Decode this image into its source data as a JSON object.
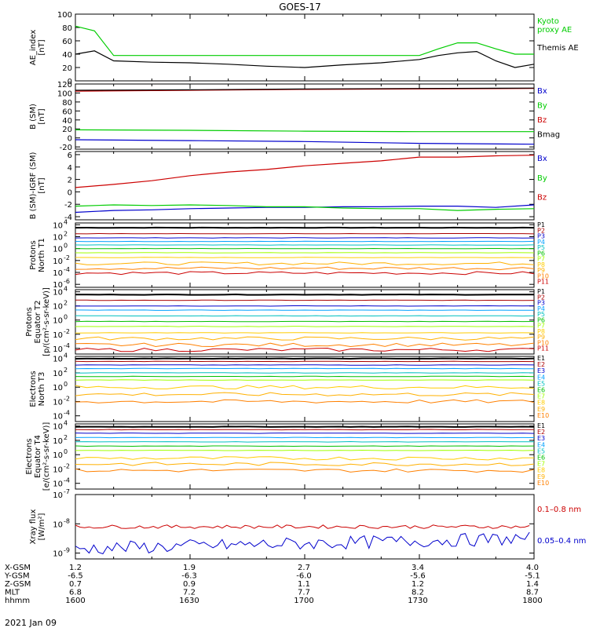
{
  "title": "GOES-17",
  "date_label": "2021 Jan 09",
  "colors": {
    "black": "#000000",
    "red": "#cc0000",
    "green": "#00cc00",
    "blue": "#0000cc",
    "p": [
      "#000000",
      "#aa0000",
      "#0000cc",
      "#00a0ff",
      "#00c0c0",
      "#00c000",
      "#a0ff00",
      "#ffcc00",
      "#ffb000",
      "#ff8000",
      "#cc0000"
    ]
  },
  "orbit_table": {
    "rows": [
      {
        "label": "X-GSM",
        "values": [
          "1.2",
          "1.9",
          "2.7",
          "3.4",
          "4.0"
        ]
      },
      {
        "label": "Y-GSM",
        "values": [
          "-6.5",
          "-6.3",
          "-6.0",
          "-5.6",
          "-5.1"
        ]
      },
      {
        "label": "Z-GSM",
        "values": [
          "0.7",
          "0.9",
          "1.1",
          "1.2",
          "1.4"
        ]
      },
      {
        "label": "MLT",
        "values": [
          "6.8",
          "7.2",
          "7.7",
          "8.2",
          "8.7"
        ]
      },
      {
        "label": "hhmm",
        "values": [
          "1600",
          "1630",
          "1700",
          "1730",
          "1800"
        ]
      }
    ]
  },
  "chart_data": [
    {
      "id": "ae",
      "type": "line",
      "ylabel": "AE_index\n[nT]",
      "yticks": [
        "100",
        "80",
        "60",
        "40",
        "20",
        "0"
      ],
      "ylim": [
        0,
        100
      ],
      "x": [
        1600,
        1605,
        1610,
        1620,
        1630,
        1640,
        1650,
        1700,
        1710,
        1720,
        1730,
        1735,
        1740,
        1745,
        1750,
        1755,
        1800
      ],
      "series": [
        {
          "name": "Kyoto proxy AE",
          "color": "#00cc00",
          "label": "Kyoto\nproxy AE",
          "values": [
            82,
            75,
            38,
            38,
            38,
            38,
            38,
            38,
            38,
            38,
            38,
            48,
            57,
            57,
            48,
            40,
            40
          ]
        },
        {
          "name": "Themis AE",
          "color": "#000000",
          "label": "Themis AE",
          "values": [
            40,
            45,
            30,
            28,
            27,
            25,
            22,
            20,
            24,
            27,
            32,
            38,
            42,
            44,
            30,
            20,
            25
          ]
        }
      ]
    },
    {
      "id": "b",
      "type": "line",
      "ylabel": "B (SM)\n[nT]",
      "yticks": [
        "120",
        "100",
        "80",
        "60",
        "40",
        "20",
        "0",
        "-20"
      ],
      "ylim": [
        -25,
        120
      ],
      "x": [
        1600,
        1630,
        1700,
        1730,
        1800
      ],
      "series": [
        {
          "name": "Bx",
          "color": "#0000cc",
          "label": "Bx",
          "values": [
            -4,
            -6,
            -8,
            -12,
            -14
          ]
        },
        {
          "name": "By",
          "color": "#00cc00",
          "label": "By",
          "values": [
            18,
            17,
            15,
            14,
            14
          ]
        },
        {
          "name": "Bz",
          "color": "#cc0000",
          "label": "Bz",
          "values": [
            104,
            106,
            108,
            109,
            110
          ]
        },
        {
          "name": "Bmag",
          "color": "#000000",
          "label": "Bmag",
          "values": [
            106,
            107,
            109,
            110,
            111
          ]
        }
      ]
    },
    {
      "id": "dbf",
      "type": "line",
      "ylabel": "B (SM)-IGRF (SM)\n[nT]",
      "yticks": [
        "6",
        "4",
        "2",
        "0",
        "-2",
        "-4"
      ],
      "ylim": [
        -4.5,
        6.5
      ],
      "x": [
        1600,
        1610,
        1620,
        1630,
        1640,
        1650,
        1700,
        1710,
        1720,
        1730,
        1740,
        1750,
        1800
      ],
      "series": [
        {
          "name": "Bx",
          "color": "#0000cc",
          "label": "Bx",
          "values": [
            -3.3,
            -3,
            -2.9,
            -2.7,
            -2.6,
            -2.5,
            -2.5,
            -2.4,
            -2.4,
            -2.3,
            -2.3,
            -2.5,
            -2.1
          ]
        },
        {
          "name": "By",
          "color": "#00cc00",
          "label": "By",
          "values": [
            -2.3,
            -2.1,
            -2.2,
            -2.1,
            -2.2,
            -2.4,
            -2.4,
            -2.6,
            -2.7,
            -2.7,
            -3,
            -2.8,
            -2.7
          ]
        },
        {
          "name": "Bz",
          "color": "#cc0000",
          "label": "Bz",
          "values": [
            0.7,
            1.2,
            1.8,
            2.6,
            3.2,
            3.6,
            4.2,
            4.6,
            5,
            5.6,
            5.6,
            5.8,
            5.9
          ]
        }
      ]
    },
    {
      "id": "pn",
      "type": "line",
      "log": true,
      "ylabel": "Protons\nNorth T1",
      "yticks": [
        "10^4",
        "10^2",
        "10^0",
        "10^-2",
        "10^-4",
        "10^-6"
      ],
      "ylim": [
        -6.5,
        4.3
      ],
      "channel_labels": [
        "P1",
        "P2",
        "P3",
        "P4",
        "P5",
        "P6",
        "P7",
        "P8",
        "P9",
        "P10",
        "P11"
      ],
      "levels": [
        3.5,
        2.5,
        1.8,
        1.2,
        0.6,
        0.0,
        -0.7,
        -1.5,
        -2.5,
        -3.3,
        -4.1
      ]
    },
    {
      "id": "pe",
      "type": "line",
      "log": true,
      "ylabel": "Protons\nEquator T2\n[p/(cm²-s-sr-keV)]",
      "yticks": [
        "10^4",
        "10^2",
        "10^0",
        "10^-2",
        "10^-4"
      ],
      "ylim": [
        -4.8,
        4.3
      ],
      "channel_labels": [
        "P1",
        "P2",
        "P3",
        "P4",
        "P5",
        "P6",
        "P7",
        "P8",
        "P9",
        "P10",
        "P11"
      ],
      "levels": [
        3.6,
        2.8,
        2.0,
        1.4,
        0.6,
        -0.2,
        -0.9,
        -1.8,
        -2.6,
        -3.5,
        -4.2
      ]
    },
    {
      "id": "en",
      "type": "line",
      "log": true,
      "ylabel": "Electrons\nNorth T3",
      "yticks": [
        "10^4",
        "10^2",
        "10^0",
        "10^-2",
        "10^-4"
      ],
      "ylim": [
        -4.8,
        4.3
      ],
      "channel_labels": [
        "E1",
        "E2",
        "E3",
        "E4",
        "E5",
        "E6",
        "E7",
        "E8",
        "E9",
        "E10"
      ],
      "levels": [
        4.0,
        3.6,
        3.1,
        2.6,
        2.0,
        1.5,
        1.0,
        0.0,
        -1.0,
        -2.0
      ]
    },
    {
      "id": "ee",
      "type": "line",
      "log": true,
      "ylabel": "Electrons\nEquator T4\n[e/(cm²-s-sr-keV)]",
      "yticks": [
        "10^4",
        "10^2",
        "10^0",
        "10^-2",
        "10^-4"
      ],
      "ylim": [
        -4.8,
        4.3
      ],
      "channel_labels": [
        "E1",
        "E2",
        "E3",
        "E4",
        "E5",
        "E6",
        "E7",
        "E8",
        "E9",
        "E10"
      ],
      "levels": [
        3.9,
        3.5,
        3.0,
        2.4,
        1.8,
        1.2,
        0.6,
        -0.5,
        -1.3,
        -2.2
      ]
    },
    {
      "id": "xr",
      "type": "line",
      "log": true,
      "ylabel": "Xray flux\n[W/m²]",
      "yticks": [
        "10^-7",
        "10^-8",
        "10^-9"
      ],
      "ylim": [
        -9.2,
        -7
      ],
      "series": [
        {
          "name": "0.1-0.8 nm",
          "color": "#cc0000",
          "label": "0.1–0.8 nm",
          "level": -8.1
        },
        {
          "name": "0.05-0.4 nm",
          "color": "#0000cc",
          "label": "0.05–0.4 nm",
          "level": -8.85
        }
      ]
    }
  ]
}
